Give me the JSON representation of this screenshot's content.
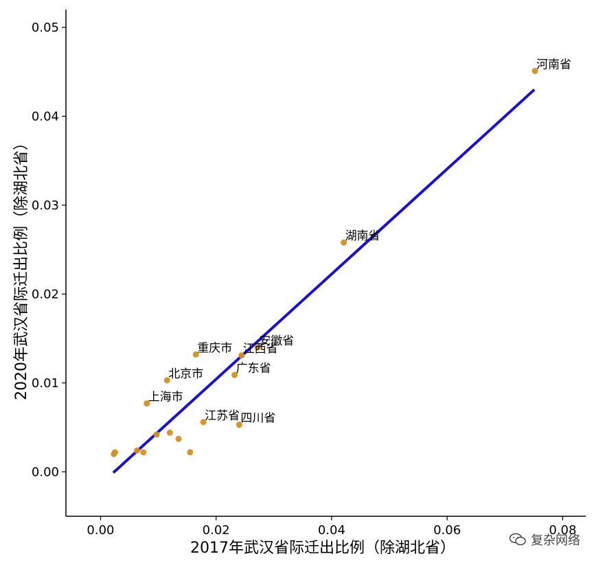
{
  "chart_data": {
    "type": "scatter",
    "xlabel": "2017年武汉省际迁出比例（除湖北省）",
    "ylabel": "2020年武汉省际迁出比例（除湖北省）",
    "xlim": [
      -0.006,
      0.084
    ],
    "ylim": [
      -0.005,
      0.052
    ],
    "xticks": [
      "0.00",
      "0.02",
      "0.04",
      "0.06",
      "0.08"
    ],
    "yticks": [
      "0.00",
      "0.01",
      "0.02",
      "0.03",
      "0.04",
      "0.05"
    ],
    "points": [
      {
        "label": "河南省",
        "x": 0.0752,
        "y": 0.0451
      },
      {
        "label": "湖南省",
        "x": 0.0421,
        "y": 0.0258
      },
      {
        "label": "安徽省",
        "x": 0.0272,
        "y": 0.014
      },
      {
        "label": "江西省",
        "x": 0.0244,
        "y": 0.0131
      },
      {
        "label": "重庆市",
        "x": 0.0165,
        "y": 0.0132
      },
      {
        "label": "广东省",
        "x": 0.0232,
        "y": 0.0109
      },
      {
        "label": "北京市",
        "x": 0.0115,
        "y": 0.0103
      },
      {
        "label": "上海市",
        "x": 0.008,
        "y": 0.0077
      },
      {
        "label": "江苏省",
        "x": 0.0178,
        "y": 0.0056
      },
      {
        "label": "四川省",
        "x": 0.024,
        "y": 0.0053
      },
      {
        "label": "",
        "x": 0.0025,
        "y": 0.0022
      },
      {
        "label": "",
        "x": 0.0023,
        "y": 0.002
      },
      {
        "label": "",
        "x": 0.0063,
        "y": 0.0024
      },
      {
        "label": "",
        "x": 0.0074,
        "y": 0.0022
      },
      {
        "label": "",
        "x": 0.0097,
        "y": 0.0042
      },
      {
        "label": "",
        "x": 0.012,
        "y": 0.0044
      },
      {
        "label": "",
        "x": 0.0135,
        "y": 0.0037
      },
      {
        "label": "",
        "x": 0.0155,
        "y": 0.0022
      }
    ],
    "fit_line": {
      "x": [
        0.0022,
        0.0751
      ],
      "y": [
        -0.0001,
        0.043
      ]
    },
    "colors": {
      "points": "#D4901F",
      "fit_line": "#1A0FD8"
    },
    "grid": false,
    "legend": "none"
  },
  "watermark": {
    "text": "复杂网络"
  }
}
